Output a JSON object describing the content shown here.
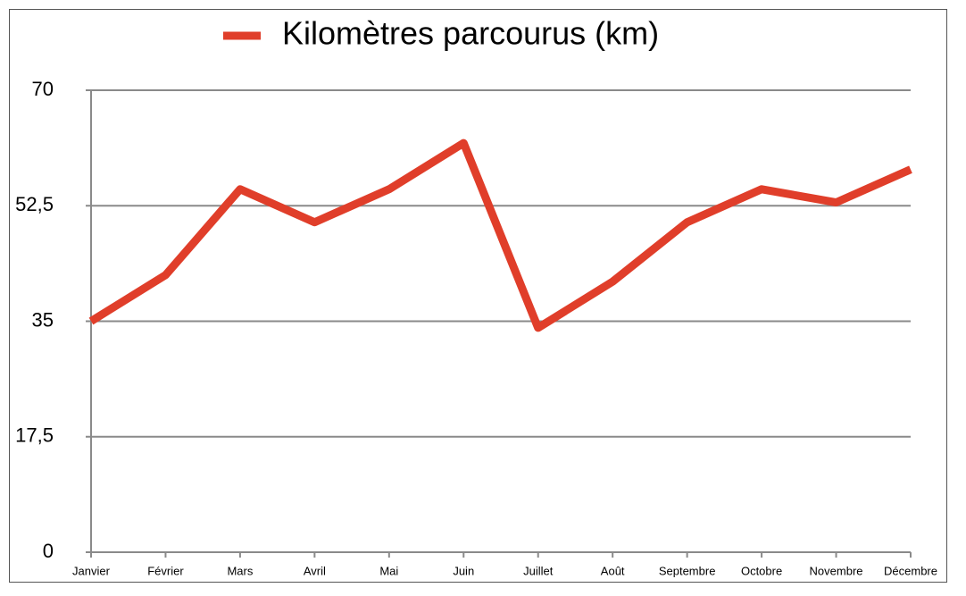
{
  "chart_data": {
    "type": "line",
    "legend_position": "top",
    "categories": [
      "Janvier",
      "Février",
      "Mars",
      "Avril",
      "Mai",
      "Juin",
      "Juillet",
      "Août",
      "Septembre",
      "Octobre",
      "Novembre",
      "Décembre"
    ],
    "series": [
      {
        "name": "Kilomètres parcourus (km)",
        "color": "#e03e2a",
        "values": [
          35,
          42,
          55,
          50,
          55,
          62,
          34,
          41,
          50,
          55,
          53,
          58
        ]
      }
    ],
    "ylim": [
      0,
      70
    ],
    "yticks": [
      0,
      {
        "value": 17.5,
        "label": "17,5"
      },
      35,
      {
        "value": 52.5,
        "label": "52,5"
      },
      70
    ],
    "grid": true
  }
}
